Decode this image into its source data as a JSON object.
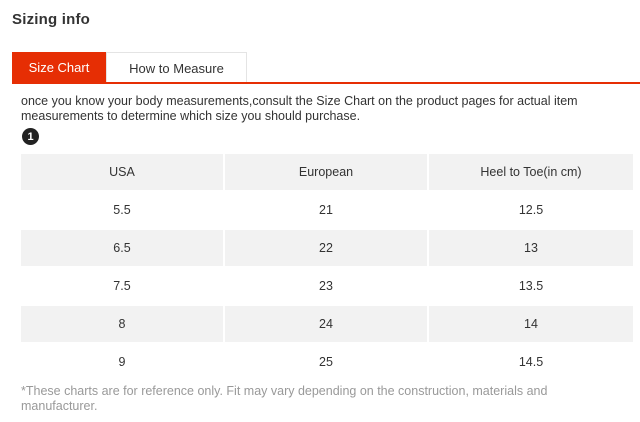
{
  "page_title": "Sizing info",
  "tabs": [
    {
      "label": "Size Chart",
      "active": true
    },
    {
      "label": "How to Measure",
      "active": false
    }
  ],
  "intro_text": "once you know your body measurements,consult the Size Chart on the product pages for actual item measurements to determine which size you should purchase.",
  "step_badge": "1",
  "table": {
    "headers": [
      "USA",
      "European",
      "Heel to Toe(in cm)"
    ],
    "rows": [
      [
        "5.5",
        "21",
        "12.5"
      ],
      [
        "6.5",
        "22",
        "13"
      ],
      [
        "7.5",
        "23",
        "13.5"
      ],
      [
        "8",
        "24",
        "14"
      ],
      [
        "9",
        "25",
        "14.5"
      ]
    ]
  },
  "footnote": "*These charts are for reference only. Fit may vary depending on the construction, materials and manufacturer.",
  "colors": {
    "accent": "#e62e04",
    "row_shade": "#f2f2f2",
    "footnote_text": "#999999"
  }
}
